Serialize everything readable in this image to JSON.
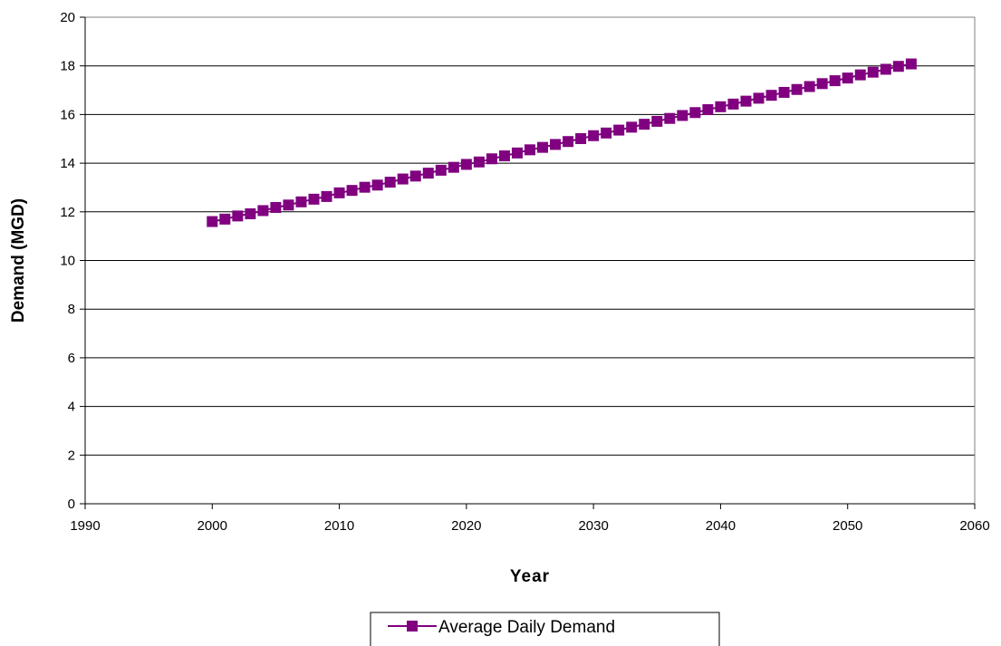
{
  "chart_data": {
    "type": "line",
    "xlabel": "Year",
    "ylabel": "Demand (MGD)",
    "xlim": [
      1990,
      2060
    ],
    "ylim": [
      0,
      20
    ],
    "xticks": [
      1990,
      2000,
      2010,
      2020,
      2030,
      2040,
      2050,
      2060
    ],
    "yticks": [
      0,
      2,
      4,
      6,
      8,
      10,
      12,
      14,
      16,
      18,
      20
    ],
    "grid": "horizontal",
    "legend_position": "bottom",
    "series": [
      {
        "name": "Average Daily Demand",
        "color": "#800080",
        "marker": "square",
        "x": [
          2000,
          2001,
          2002,
          2003,
          2004,
          2005,
          2006,
          2007,
          2008,
          2009,
          2010,
          2011,
          2012,
          2013,
          2014,
          2015,
          2016,
          2017,
          2018,
          2019,
          2020,
          2021,
          2022,
          2023,
          2024,
          2025,
          2026,
          2027,
          2028,
          2029,
          2030,
          2031,
          2032,
          2033,
          2034,
          2035,
          2036,
          2037,
          2038,
          2039,
          2040,
          2041,
          2042,
          2043,
          2044,
          2045,
          2046,
          2047,
          2048,
          2049,
          2050,
          2051,
          2052,
          2053,
          2054,
          2055
        ],
        "y": [
          11.6,
          11.7,
          11.83,
          11.92,
          12.05,
          12.18,
          12.28,
          12.41,
          12.52,
          12.63,
          12.78,
          12.88,
          13.01,
          13.1,
          13.22,
          13.35,
          13.47,
          13.59,
          13.71,
          13.83,
          13.95,
          14.05,
          14.18,
          14.3,
          14.42,
          14.55,
          14.65,
          14.77,
          14.89,
          15.01,
          15.13,
          15.24,
          15.36,
          15.48,
          15.6,
          15.72,
          15.84,
          15.96,
          16.08,
          16.2,
          16.32,
          16.43,
          16.55,
          16.67,
          16.79,
          16.91,
          17.03,
          17.15,
          17.27,
          17.39,
          17.5,
          17.63,
          17.74,
          17.86,
          17.98,
          18.08
        ]
      }
    ]
  }
}
